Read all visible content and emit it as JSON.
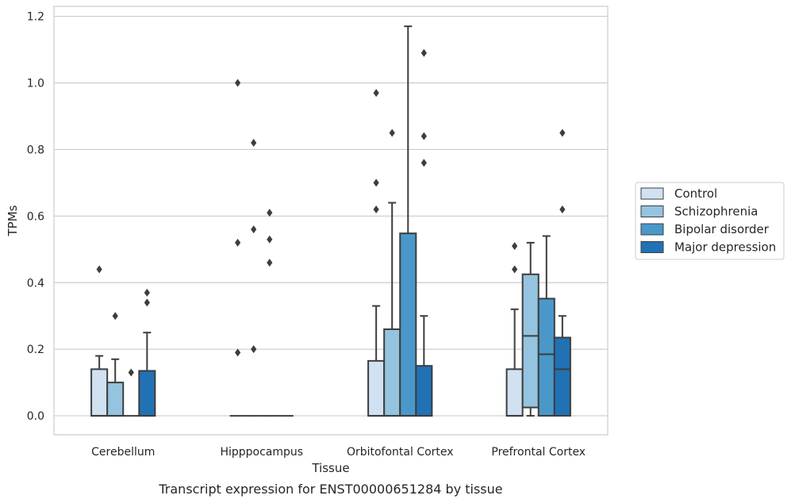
{
  "caption": "Transcript expression for ENST00000651284 by tissue",
  "chart_data": {
    "type": "box",
    "xlabel": "Tissue",
    "ylabel": "TPMs",
    "ylim": [
      -0.057,
      1.23
    ],
    "yticks": [
      0.0,
      0.2,
      0.4,
      0.6,
      0.8,
      1.0,
      1.2
    ],
    "ytick_labels": [
      "0.0",
      "0.2",
      "0.4",
      "0.6",
      "0.8",
      "1.0",
      "1.2"
    ],
    "grid": "horizontal",
    "legend_position": "right",
    "categories": [
      "Cerebellum",
      "Hipppocampus",
      "Orbitofontal Cortex",
      "Prefrontal Cortex"
    ],
    "series": [
      {
        "name": "Control",
        "color": "#d0e1f2",
        "boxes": [
          {
            "q1": 0.0,
            "median": 0.0,
            "q3": 0.14,
            "whisker_low": 0.0,
            "whisker_high": 0.18,
            "outliers": [
              0.44
            ]
          },
          {
            "q1": 0.0,
            "median": 0.0,
            "q3": 0.0,
            "whisker_low": 0.0,
            "whisker_high": 0.0,
            "outliers": [
              0.19,
              0.52,
              1.0
            ]
          },
          {
            "q1": 0.0,
            "median": 0.0,
            "q3": 0.165,
            "whisker_low": 0.0,
            "whisker_high": 0.33,
            "outliers": [
              0.62,
              0.7,
              0.97
            ]
          },
          {
            "q1": 0.0,
            "median": 0.0,
            "q3": 0.14,
            "whisker_low": 0.0,
            "whisker_high": 0.32,
            "outliers": [
              0.44,
              0.51
            ]
          }
        ]
      },
      {
        "name": "Schizophrenia",
        "color": "#94c4df",
        "boxes": [
          {
            "q1": 0.0,
            "median": 0.0,
            "q3": 0.1,
            "whisker_low": 0.0,
            "whisker_high": 0.17,
            "outliers": [
              0.3
            ]
          },
          {
            "q1": 0.0,
            "median": 0.0,
            "q3": 0.0,
            "whisker_low": 0.0,
            "whisker_high": 0.0,
            "outliers": [
              0.2,
              0.56,
              0.82
            ]
          },
          {
            "q1": 0.0,
            "median": 0.0,
            "q3": 0.26,
            "whisker_low": 0.0,
            "whisker_high": 0.64,
            "outliers": [
              0.85
            ]
          },
          {
            "q1": 0.025,
            "median": 0.24,
            "q3": 0.425,
            "whisker_low": 0.0,
            "whisker_high": 0.52,
            "outliers": []
          }
        ]
      },
      {
        "name": "Bipolar disorder",
        "color": "#4a98c9",
        "boxes": [
          {
            "q1": 0.0,
            "median": 0.0,
            "q3": 0.0,
            "whisker_low": 0.0,
            "whisker_high": 0.0,
            "outliers": [
              0.13
            ]
          },
          {
            "q1": 0.0,
            "median": 0.0,
            "q3": 0.0,
            "whisker_low": 0.0,
            "whisker_high": 0.0,
            "outliers": [
              0.46,
              0.53,
              0.61
            ]
          },
          {
            "q1": 0.0,
            "median": 0.0,
            "q3": 0.548,
            "whisker_low": 0.0,
            "whisker_high": 1.17,
            "outliers": []
          },
          {
            "q1": 0.0,
            "median": 0.185,
            "q3": 0.352,
            "whisker_low": 0.0,
            "whisker_high": 0.54,
            "outliers": []
          }
        ]
      },
      {
        "name": "Major depression",
        "color": "#2171b5",
        "boxes": [
          {
            "q1": 0.0,
            "median": 0.0,
            "q3": 0.135,
            "whisker_low": 0.0,
            "whisker_high": 0.25,
            "outliers": [
              0.34,
              0.37
            ]
          },
          {
            "q1": 0.0,
            "median": 0.0,
            "q3": 0.0,
            "whisker_low": 0.0,
            "whisker_high": 0.0,
            "outliers": []
          },
          {
            "q1": 0.0,
            "median": 0.0,
            "q3": 0.15,
            "whisker_low": 0.0,
            "whisker_high": 0.3,
            "outliers": [
              0.76,
              0.84,
              1.09
            ]
          },
          {
            "q1": 0.0,
            "median": 0.14,
            "q3": 0.235,
            "whisker_low": 0.0,
            "whisker_high": 0.3,
            "outliers": [
              0.62,
              0.85
            ]
          }
        ]
      }
    ]
  }
}
